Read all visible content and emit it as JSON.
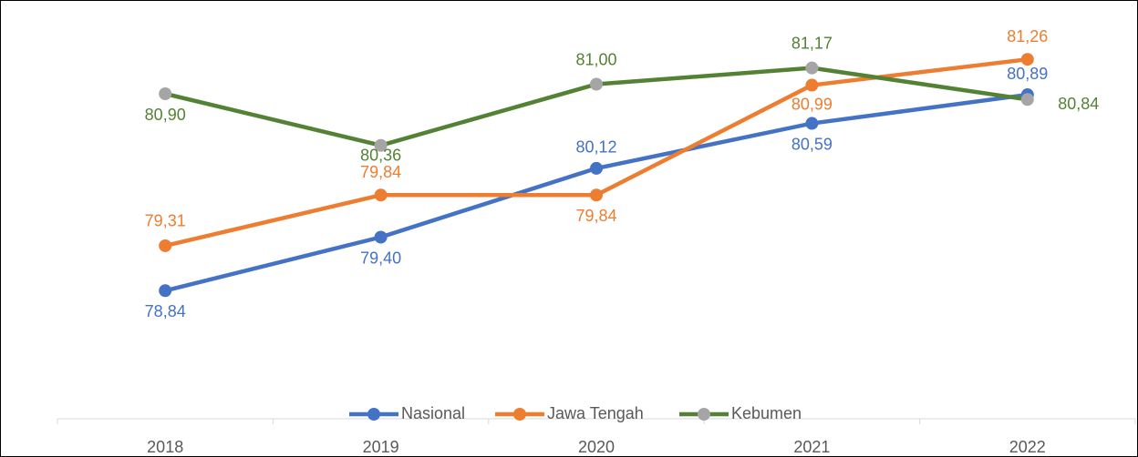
{
  "chart_data": {
    "type": "line",
    "categories": [
      "2018",
      "2019",
      "2020",
      "2021",
      "2022"
    ],
    "series": [
      {
        "name": "Nasional",
        "color": "#4472c4",
        "marker_color": "#4472c4",
        "values": [
          78.84,
          79.4,
          80.12,
          80.59,
          80.89
        ],
        "value_labels": [
          "78,84",
          "79,40",
          "80,12",
          "80,59",
          "80,89"
        ]
      },
      {
        "name": "Jawa Tengah",
        "color": "#ed7d31",
        "marker_color": "#ed7d31",
        "values": [
          79.31,
          79.84,
          79.84,
          80.99,
          81.26
        ],
        "value_labels": [
          "79,31",
          "79,84",
          "79,84",
          "80,99",
          "81,26"
        ]
      },
      {
        "name": "Kebumen",
        "color": "#548235",
        "marker_color": "#a5a5a5",
        "values": [
          80.9,
          80.36,
          81.0,
          81.17,
          80.84
        ],
        "value_labels": [
          "80,90",
          "80,36",
          "81,00",
          "81,17",
          "80,84"
        ]
      }
    ],
    "ylim": [
      77.5,
      81.5
    ],
    "legend": "bottom"
  }
}
